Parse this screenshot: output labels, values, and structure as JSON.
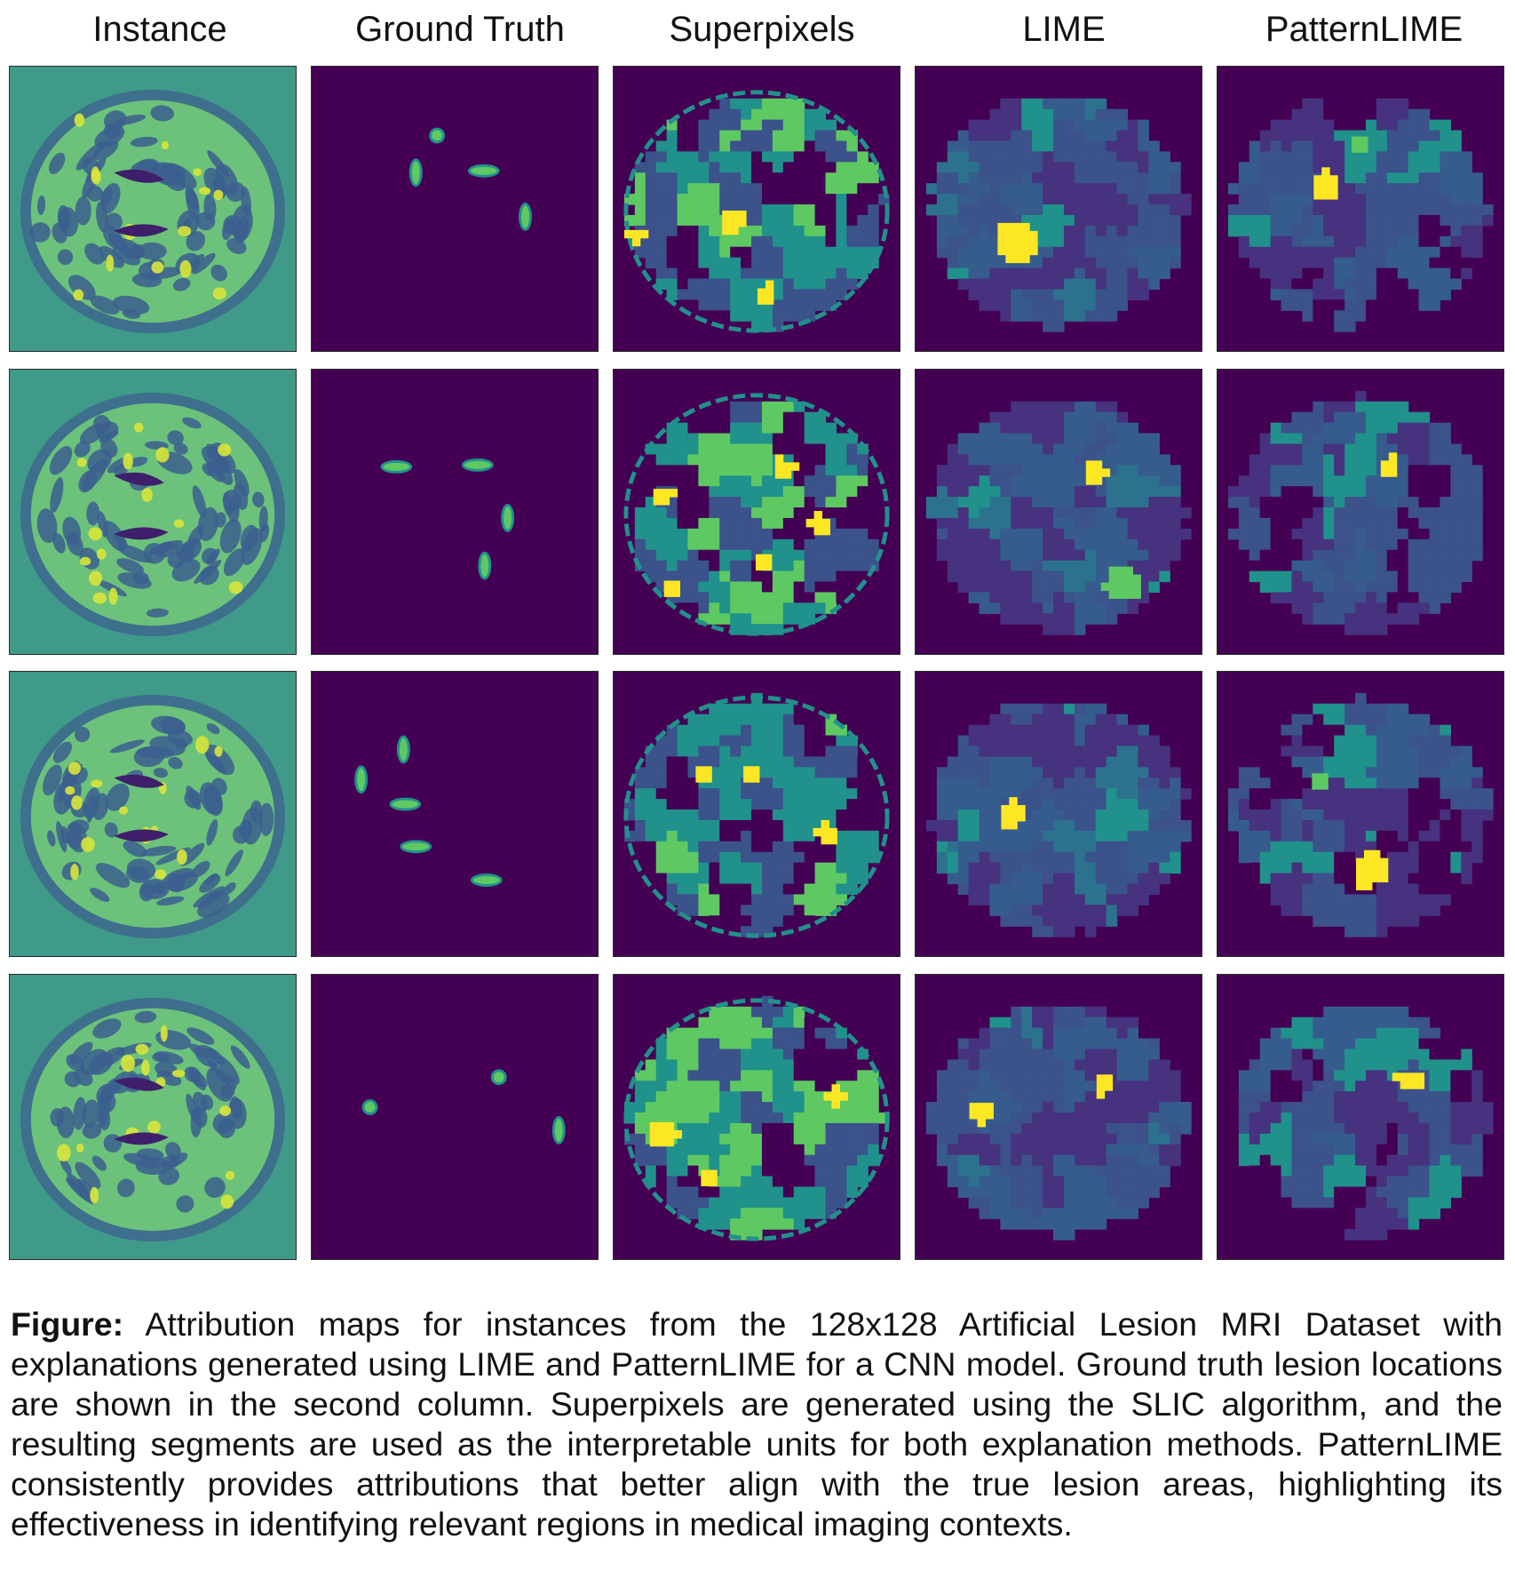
{
  "figure": {
    "columns": [
      "Instance",
      "Ground Truth",
      "Superpixels",
      "LIME",
      "PatternLIME"
    ],
    "rows": 4
  },
  "caption": {
    "label": "Figure:",
    "text": "Attribution maps for instances from the 128x128 Artificial Lesion MRI Dataset with explanations generated using LIME and PatternLIME for a CNN model. Ground truth lesion locations are shown in the second column. Superpixels are generated using the SLIC algorithm, and the resulting segments are used as the interpretable units for both explanation methods. PatternLIME consistently provides attributions that better align with the true lesion areas, highlighting its effectiveness in identifying relevant regions in medical imaging contexts."
  },
  "colors": {
    "viridis_dark": "#440154",
    "viridis_blue": "#3b528b",
    "viridis_teal": "#21918c",
    "viridis_green": "#5ec962",
    "viridis_yellow": "#fde725",
    "instance_bg": "#3f9a8a"
  }
}
